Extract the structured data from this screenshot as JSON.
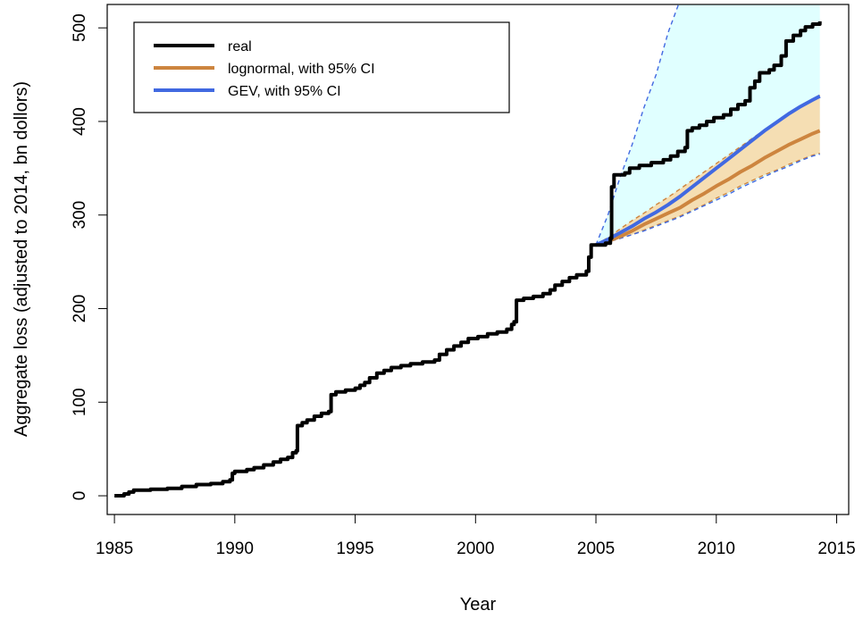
{
  "chart_data": {
    "type": "line",
    "title": "",
    "xlabel": "Year",
    "ylabel": "Aggregate loss (adjusted to 2014, bn dollors)",
    "xlim": [
      1984.7,
      2015.5
    ],
    "ylim": [
      -20,
      525
    ],
    "x_ticks": [
      1985,
      1990,
      1995,
      2000,
      2005,
      2010,
      2015
    ],
    "y_ticks": [
      0,
      100,
      200,
      300,
      400,
      500
    ],
    "grid": false,
    "legend": {
      "position": "top-left",
      "entries": [
        {
          "label": "real",
          "color": "#000000"
        },
        {
          "label": "lognormal, with 95% CI",
          "color": "#CD853F"
        },
        {
          "label": "GEV, with 95% CI",
          "color": "#4169E1"
        }
      ]
    },
    "colors": {
      "real": "#000000",
      "lognormal": "#CD853F",
      "lognormal_band": "#F5DEB3",
      "gev": "#4169E1",
      "gev_band": "#E0FFFF"
    },
    "series": [
      {
        "name": "real",
        "style": "step",
        "points": [
          [
            1985.0,
            0
          ],
          [
            1985.4,
            2
          ],
          [
            1985.6,
            4
          ],
          [
            1985.8,
            6
          ],
          [
            1986.5,
            7
          ],
          [
            1987.2,
            8
          ],
          [
            1987.8,
            10
          ],
          [
            1988.4,
            12
          ],
          [
            1989.0,
            13
          ],
          [
            1989.5,
            15
          ],
          [
            1989.8,
            17
          ],
          [
            1989.9,
            24
          ],
          [
            1990.0,
            26
          ],
          [
            1990.5,
            28
          ],
          [
            1990.8,
            30
          ],
          [
            1991.2,
            33
          ],
          [
            1991.6,
            36
          ],
          [
            1991.9,
            39
          ],
          [
            1992.2,
            41
          ],
          [
            1992.4,
            46
          ],
          [
            1992.55,
            48
          ],
          [
            1992.6,
            75
          ],
          [
            1992.8,
            78
          ],
          [
            1993.0,
            81
          ],
          [
            1993.3,
            85
          ],
          [
            1993.6,
            88
          ],
          [
            1993.9,
            90
          ],
          [
            1994.0,
            108
          ],
          [
            1994.2,
            111
          ],
          [
            1994.6,
            113
          ],
          [
            1995.0,
            115
          ],
          [
            1995.2,
            118
          ],
          [
            1995.4,
            121
          ],
          [
            1995.6,
            126
          ],
          [
            1995.9,
            131
          ],
          [
            1996.2,
            134
          ],
          [
            1996.5,
            137
          ],
          [
            1996.9,
            139
          ],
          [
            1997.3,
            141
          ],
          [
            1997.8,
            143
          ],
          [
            1998.3,
            145
          ],
          [
            1998.5,
            151
          ],
          [
            1998.8,
            156
          ],
          [
            1999.1,
            160
          ],
          [
            1999.4,
            164
          ],
          [
            1999.7,
            168
          ],
          [
            2000.1,
            170
          ],
          [
            2000.5,
            173
          ],
          [
            2000.9,
            175
          ],
          [
            2001.3,
            178
          ],
          [
            2001.5,
            183
          ],
          [
            2001.6,
            186
          ],
          [
            2001.7,
            209
          ],
          [
            2002.0,
            211
          ],
          [
            2002.4,
            213
          ],
          [
            2002.8,
            216
          ],
          [
            2003.1,
            220
          ],
          [
            2003.3,
            225
          ],
          [
            2003.6,
            229
          ],
          [
            2003.9,
            233
          ],
          [
            2004.2,
            236
          ],
          [
            2004.6,
            240
          ],
          [
            2004.7,
            255
          ],
          [
            2004.8,
            268
          ],
          [
            2005.4,
            270
          ],
          [
            2005.6,
            275
          ],
          [
            2005.65,
            330
          ],
          [
            2005.75,
            343
          ],
          [
            2006.2,
            345
          ],
          [
            2006.4,
            350
          ],
          [
            2006.8,
            353
          ],
          [
            2007.3,
            356
          ],
          [
            2007.8,
            359
          ],
          [
            2008.1,
            363
          ],
          [
            2008.4,
            368
          ],
          [
            2008.7,
            372
          ],
          [
            2008.8,
            390
          ],
          [
            2009.0,
            393
          ],
          [
            2009.3,
            396
          ],
          [
            2009.6,
            400
          ],
          [
            2009.9,
            404
          ],
          [
            2010.3,
            407
          ],
          [
            2010.6,
            413
          ],
          [
            2010.9,
            418
          ],
          [
            2011.2,
            422
          ],
          [
            2011.4,
            436
          ],
          [
            2011.6,
            443
          ],
          [
            2011.8,
            452
          ],
          [
            2012.2,
            455
          ],
          [
            2012.4,
            460
          ],
          [
            2012.7,
            470
          ],
          [
            2012.9,
            486
          ],
          [
            2013.2,
            492
          ],
          [
            2013.5,
            497
          ],
          [
            2013.7,
            501
          ],
          [
            2014.0,
            504
          ],
          [
            2014.3,
            507
          ]
        ]
      },
      {
        "name": "lognormal, with 95% CI",
        "x": [
          2005.0,
          2005.5,
          2006.0,
          2006.5,
          2007.0,
          2007.5,
          2008.0,
          2008.5,
          2009.0,
          2009.5,
          2010.0,
          2010.5,
          2011.0,
          2011.5,
          2012.0,
          2012.5,
          2013.0,
          2013.5,
          2014.0,
          2014.3
        ],
        "values": [
          268,
          272,
          277,
          283,
          290,
          296,
          302,
          308,
          316,
          323,
          331,
          338,
          346,
          353,
          361,
          368,
          375,
          381,
          387,
          390
        ],
        "lower": [
          268,
          271,
          275,
          279,
          284,
          289,
          294,
          299,
          305,
          311,
          318,
          324,
          331,
          337,
          343,
          348,
          354,
          359,
          364,
          366
        ],
        "upper": [
          268,
          276,
          285,
          294,
          302,
          311,
          319,
          328,
          337,
          346,
          355,
          364,
          373,
          382,
          391,
          400,
          409,
          417,
          424,
          428
        ]
      },
      {
        "name": "GEV, with 95% CI",
        "x": [
          2005.0,
          2005.5,
          2006.0,
          2006.5,
          2007.0,
          2007.5,
          2008.0,
          2008.5,
          2009.0,
          2009.5,
          2010.0,
          2010.5,
          2011.0,
          2011.5,
          2012.0,
          2012.5,
          2013.0,
          2013.5,
          2014.0,
          2014.3
        ],
        "values": [
          268,
          274,
          281,
          288,
          296,
          303,
          311,
          320,
          330,
          340,
          350,
          360,
          370,
          380,
          390,
          399,
          408,
          416,
          423,
          427
        ],
        "lower": [
          268,
          271,
          275,
          279,
          283,
          288,
          293,
          298,
          304,
          310,
          316,
          322,
          329,
          335,
          341,
          347,
          352,
          358,
          363,
          365
        ],
        "upper": [
          268,
          300,
          340,
          375,
          415,
          450,
          495,
          530,
          560,
          590,
          620,
          650,
          680,
          710,
          740,
          770,
          800,
          830,
          860,
          880
        ]
      }
    ]
  }
}
